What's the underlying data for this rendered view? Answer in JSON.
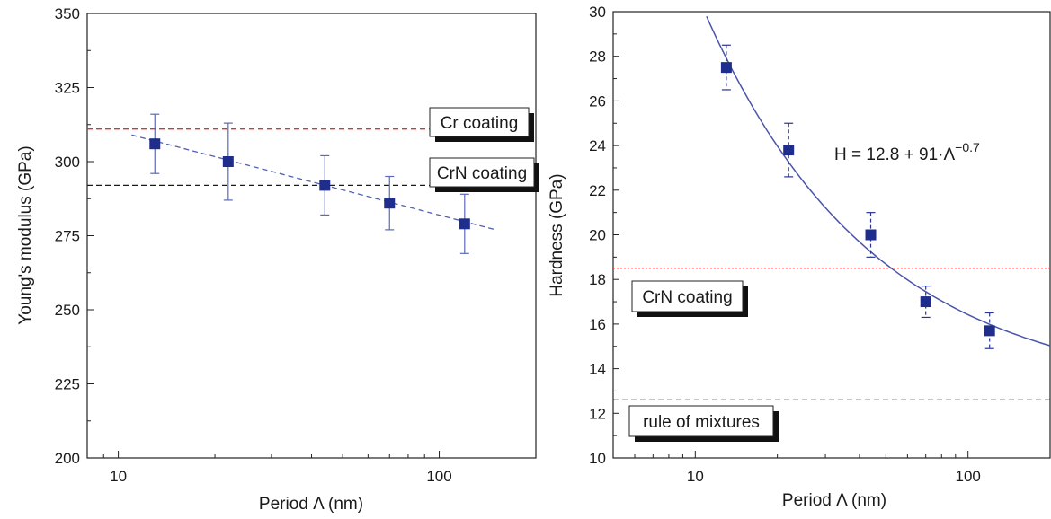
{
  "chart_data": [
    {
      "type": "scatter",
      "title": "",
      "xlabel": "Period Λ (nm)",
      "ylabel": "Young's modulus (GPa)",
      "xscale": "log",
      "xlim": [
        8,
        200
      ],
      "ylim": [
        200,
        350
      ],
      "xticks": [
        10,
        100
      ],
      "xtick_labels": [
        "10",
        "100"
      ],
      "yticks": [
        200,
        225,
        250,
        275,
        300,
        325,
        350
      ],
      "ytick_labels": [
        "200",
        "225",
        "250",
        "275",
        "300",
        "325",
        "350"
      ],
      "grid": false,
      "series": [
        {
          "x": [
            13,
            22,
            44,
            70,
            120
          ],
          "y": [
            306,
            300,
            292,
            286,
            279
          ],
          "error": [
            10,
            13,
            10,
            9,
            10
          ],
          "color": "#1f2d8c"
        }
      ],
      "trendline": {
        "x": [
          11,
          150
        ],
        "y": [
          309,
          277
        ],
        "style": "dashed",
        "color": "#5060b0"
      },
      "reference_lines": [
        {
          "y": 311,
          "label": "Cr coating",
          "color": "#e03030",
          "style": "dashed"
        },
        {
          "y": 292,
          "label": "CrN coating",
          "color": "#1a1a1a",
          "style": "dashed"
        }
      ]
    },
    {
      "type": "scatter",
      "title": "",
      "xlabel": "Period Λ (nm)",
      "ylabel": "Hardness (GPa)",
      "xscale": "log",
      "xlim": [
        5,
        200
      ],
      "ylim": [
        10,
        30
      ],
      "xticks": [
        10,
        100
      ],
      "xtick_labels": [
        "10",
        "100"
      ],
      "yticks": [
        10,
        12,
        14,
        16,
        18,
        20,
        22,
        24,
        26,
        28,
        30
      ],
      "ytick_labels": [
        "10",
        "12",
        "14",
        "16",
        "18",
        "20",
        "22",
        "24",
        "26",
        "28",
        "30"
      ],
      "grid": false,
      "series": [
        {
          "x": [
            13,
            22,
            44,
            70,
            120
          ],
          "y": [
            27.5,
            23.8,
            20.0,
            17.0,
            15.7
          ],
          "error": [
            1.0,
            1.2,
            1.0,
            0.7,
            0.8
          ],
          "color": "#1f2d8c"
        }
      ],
      "fit": {
        "a": 12.8,
        "b": 91,
        "c": -0.7,
        "x_range": [
          11,
          200
        ],
        "color": "#4a55a8"
      },
      "equation": {
        "lhs": "H = 12.8 + 91·Λ",
        "exponent": "−0.7"
      },
      "reference_lines": [
        {
          "y": 18.5,
          "label": "CrN coating",
          "color": "#e03030",
          "style": "dotted"
        },
        {
          "y": 12.6,
          "label": "rule of mixtures",
          "color": "#1a1a1a",
          "style": "dashed"
        }
      ]
    }
  ]
}
